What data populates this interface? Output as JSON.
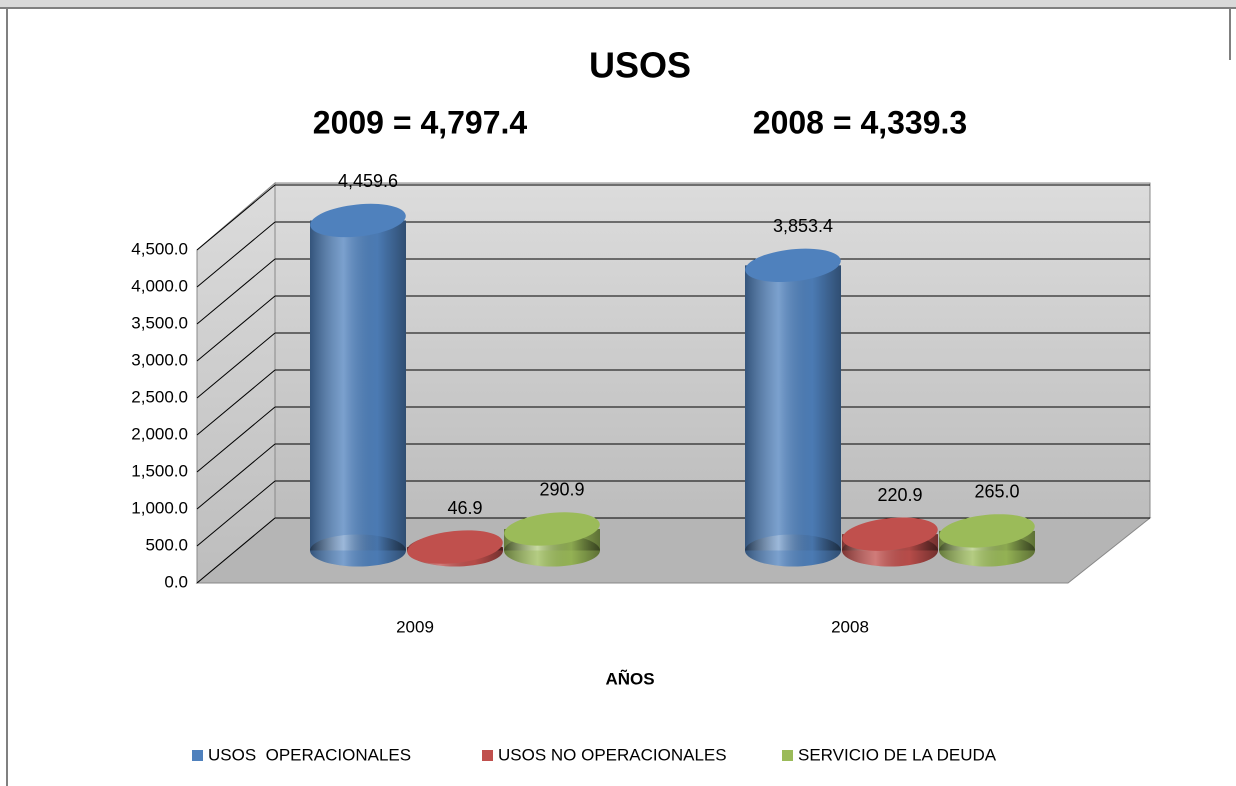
{
  "chart_data": {
    "type": "bar3d",
    "title": "USOS",
    "annotations": [
      "2009 = 4,797.4",
      "2008 = 4,339.3"
    ],
    "x_label": "AÑOS",
    "categories": [
      "2009",
      "2008"
    ],
    "series": [
      {
        "name": "USOS  OPERACIONALES",
        "color": "#4f81bd",
        "values": [
          4459.6,
          3853.4
        ],
        "value_labels": [
          "4,459.6",
          "3,853.4"
        ]
      },
      {
        "name": "USOS NO OPERACIONALES",
        "color": "#c0504d",
        "values": [
          46.9,
          220.9
        ],
        "value_labels": [
          "46.9",
          "220.9"
        ]
      },
      {
        "name": "SERVICIO DE LA DEUDA",
        "color": "#9bbb59",
        "values": [
          290.9,
          265.0
        ],
        "value_labels": [
          "290.9",
          "265.0"
        ]
      }
    ],
    "ylim": [
      0,
      4500
    ],
    "yticks": [
      {
        "value": 0,
        "label": "0.0"
      },
      {
        "value": 500,
        "label": "500.0"
      },
      {
        "value": 1000,
        "label": "1,000.0"
      },
      {
        "value": 1500,
        "label": "1,500.0"
      },
      {
        "value": 2000,
        "label": "2,000.0"
      },
      {
        "value": 2500,
        "label": "2,500.0"
      },
      {
        "value": 3000,
        "label": "3,000.0"
      },
      {
        "value": 3500,
        "label": "3,500.0"
      },
      {
        "value": 4000,
        "label": "4,000.0"
      },
      {
        "value": 4500,
        "label": "4,500.0"
      }
    ],
    "grid": true,
    "legend": "bottom"
  }
}
